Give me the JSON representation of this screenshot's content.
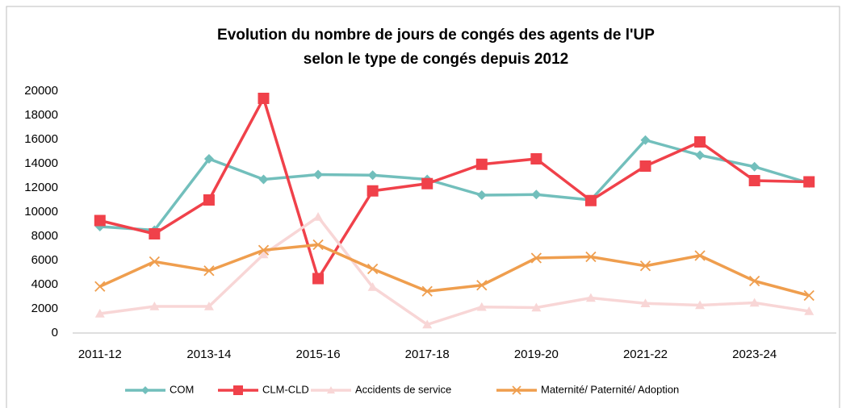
{
  "chart_data": {
    "type": "line",
    "title": [
      "Evolution du nombre de jours de congés des agents de l'UP",
      "selon le type de congés depuis 2012"
    ],
    "categories": [
      "2011-12",
      null,
      "2013-14",
      null,
      "2015-16",
      null,
      "2017-18",
      null,
      "2019-20",
      null,
      "2021-22",
      null,
      "2023-24",
      null
    ],
    "series": [
      {
        "name": "COM",
        "color": "#72bfbc",
        "marker": "diamond",
        "values": [
          8800,
          8500,
          14400,
          12700,
          13100,
          13050,
          12700,
          11400,
          11450,
          11000,
          15950,
          14700,
          13750,
          12400
        ]
      },
      {
        "name": "CLM-CLD",
        "color": "#f0414a",
        "marker": "square",
        "values": [
          9300,
          8200,
          11000,
          19400,
          4500,
          11750,
          12350,
          13950,
          14400,
          10950,
          13800,
          15800,
          12600,
          12500
        ]
      },
      {
        "name": "Accidents de service",
        "color": "#f8d6d6",
        "marker": "triangle",
        "values": [
          1600,
          2200,
          2200,
          6500,
          9600,
          3800,
          700,
          2150,
          2100,
          2900,
          2450,
          2300,
          2500,
          1800
        ]
      },
      {
        "name": "Maternité/ Paternité/ Adoption",
        "color": "#ef9e4e",
        "marker": "x",
        "values": [
          3850,
          5900,
          5150,
          6850,
          7300,
          5300,
          3450,
          3950,
          6200,
          6300,
          5550,
          6400,
          4300,
          3100
        ]
      }
    ],
    "ylim": [
      0,
      20000
    ],
    "yticks": [
      0,
      2000,
      4000,
      6000,
      8000,
      10000,
      12000,
      14000,
      16000,
      18000,
      20000
    ],
    "grid": false,
    "legend": "bottom"
  }
}
